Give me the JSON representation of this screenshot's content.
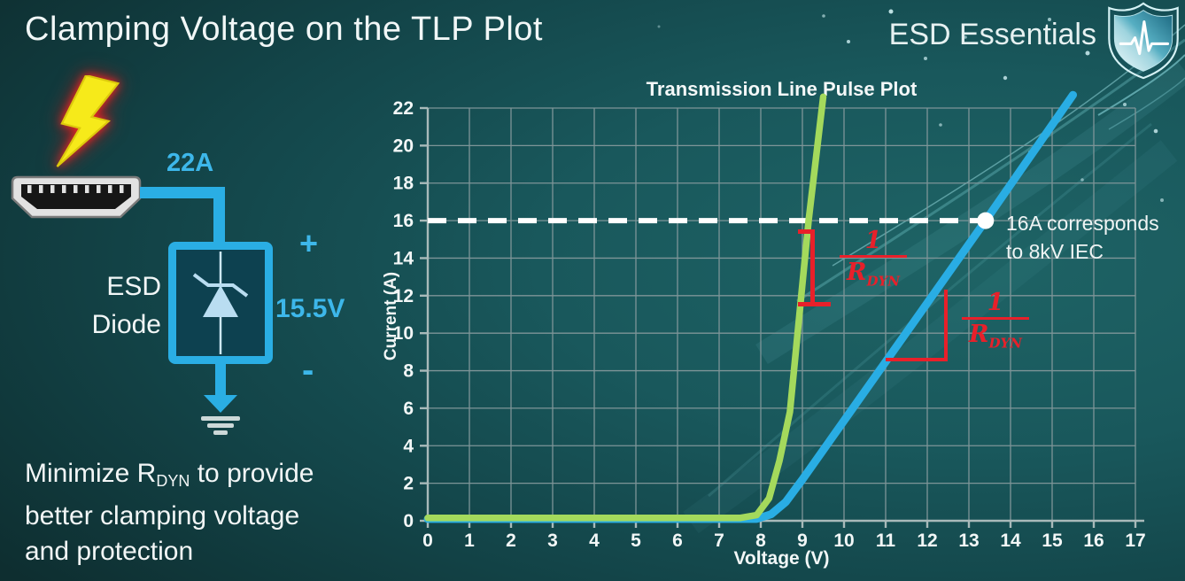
{
  "page": {
    "title": "Clamping Voltage on the TLP Plot",
    "brand": "ESD Essentials"
  },
  "icons": {
    "brand_shield": "shield-with-ecg-pulse-icon",
    "lightning": "esd-strike-lightning-icon",
    "connector": "hdmi-connector-icon",
    "zener_diode": "zener-diode-symbol-icon",
    "arrow_down": "current-to-ground-arrow-icon",
    "ground": "earth-ground-icon"
  },
  "diagram": {
    "surge_current": "22A",
    "device_line1": "ESD",
    "device_line2": "Diode",
    "plus_sign": "+",
    "clamping_voltage": "15.5V",
    "minus_sign": "-"
  },
  "note": {
    "line1_prefix": "Minimize R",
    "line1_sub": "DYN",
    "line1_suffix": " to provide",
    "line2": "better clamping voltage",
    "line3": "and protection"
  },
  "colors": {
    "background_dark": "#0c2424",
    "background_light": "#1e6365",
    "curve_green": "#a4d95c",
    "curve_blue": "#29ade4",
    "accent_cyan": "#2aaee4",
    "annotation_red": "#e8202a",
    "grid": "#7e9598",
    "axis": "#a9baba",
    "text": "#f2f7f7"
  },
  "chart_data": {
    "type": "line",
    "title": "Transmission Line Pulse Plot",
    "xlabel": "Voltage (V)",
    "ylabel": "Current (A)",
    "xlim": [
      0,
      17
    ],
    "ylim": [
      0,
      22
    ],
    "x_ticks": [
      0,
      1,
      2,
      3,
      4,
      5,
      6,
      7,
      8,
      9,
      10,
      11,
      12,
      13,
      14,
      15,
      16,
      17
    ],
    "y_ticks": [
      0,
      2,
      4,
      6,
      8,
      10,
      12,
      14,
      16,
      18,
      20,
      22
    ],
    "grid": true,
    "legend": "none",
    "series": [
      {
        "name": "high-rdyn-diode-blue",
        "color": "#29ade4",
        "width": 9,
        "points": [
          [
            0,
            0.1
          ],
          [
            7.9,
            0.1
          ],
          [
            8.25,
            0.35
          ],
          [
            8.6,
            1.0
          ],
          [
            9.0,
            2.2
          ],
          [
            13.4,
            16
          ],
          [
            15.5,
            22.7
          ]
        ]
      },
      {
        "name": "low-rdyn-diode-green",
        "color": "#a4d95c",
        "width": 7.5,
        "points": [
          [
            0,
            0.15
          ],
          [
            7.5,
            0.15
          ],
          [
            7.9,
            0.3
          ],
          [
            8.2,
            1.2
          ],
          [
            8.45,
            3.2
          ],
          [
            8.7,
            5.8
          ],
          [
            9.15,
            16
          ],
          [
            9.5,
            22.6
          ]
        ]
      }
    ],
    "reference_line": {
      "current_a": 16,
      "color": "#ffffff",
      "style": "dashed",
      "from_v": 0,
      "to_v": 13.4
    },
    "marker": {
      "v": 13.4,
      "i": 16
    },
    "callout": {
      "line1": "16A corresponds",
      "line2": "to 8kV IEC"
    },
    "annotations": [
      {
        "numerator": "1",
        "denominator": "R",
        "denominator_sub": "DYN",
        "color": "#e8202a",
        "attached_to": "low-rdyn-diode-green"
      },
      {
        "numerator": "1",
        "denominator": "R",
        "denominator_sub": "DYN",
        "color": "#e8202a",
        "attached_to": "high-rdyn-diode-blue"
      }
    ]
  }
}
